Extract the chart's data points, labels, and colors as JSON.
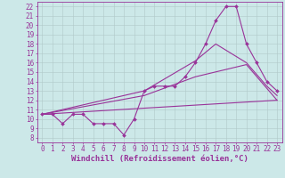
{
  "title": "",
  "xlabel": "Windchill (Refroidissement éolien,°C)",
  "background_color": "#cce8e8",
  "grid_color": "#b0c8c8",
  "line_color": "#993399",
  "xlim": [
    -0.5,
    23.5
  ],
  "ylim": [
    7.5,
    22.5
  ],
  "xticks": [
    0,
    1,
    2,
    3,
    4,
    5,
    6,
    7,
    8,
    9,
    10,
    11,
    12,
    13,
    14,
    15,
    16,
    17,
    18,
    19,
    20,
    21,
    22,
    23
  ],
  "yticks": [
    8,
    9,
    10,
    11,
    12,
    13,
    14,
    15,
    16,
    17,
    18,
    19,
    20,
    21,
    22
  ],
  "series1_x": [
    0,
    1,
    2,
    3,
    4,
    5,
    6,
    7,
    8,
    9,
    10,
    11,
    12,
    13,
    14,
    15,
    16,
    17,
    18,
    19,
    20,
    21,
    22,
    23
  ],
  "series1_y": [
    10.5,
    10.5,
    9.5,
    10.5,
    10.5,
    9.5,
    9.5,
    9.5,
    8.3,
    10.0,
    13.0,
    13.5,
    13.5,
    13.5,
    14.5,
    16.0,
    18.0,
    20.5,
    22.0,
    22.0,
    18.0,
    16.0,
    14.0,
    13.0
  ],
  "series2_x": [
    0,
    10,
    15,
    17,
    20,
    22,
    23
  ],
  "series2_y": [
    10.5,
    13.0,
    16.2,
    18.0,
    16.0,
    13.5,
    12.5
  ],
  "series3_x": [
    0,
    10,
    15,
    20,
    23
  ],
  "series3_y": [
    10.5,
    12.5,
    14.5,
    15.8,
    12.0
  ],
  "series4_x": [
    0,
    23
  ],
  "series4_y": [
    10.5,
    12.0
  ],
  "tick_fontsize": 5.5,
  "label_fontsize": 6.5,
  "label_fontweight": "bold"
}
